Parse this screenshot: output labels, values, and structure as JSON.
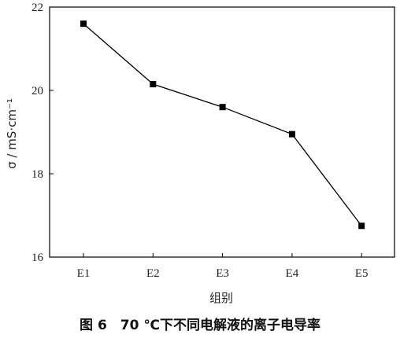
{
  "chart_data": {
    "type": "line",
    "caption": "图 6　70 ℃下不同电解液的离子电导率",
    "xlabel": "组别",
    "ylabel": "σ / mS·cm⁻¹",
    "categories": [
      "E1",
      "E2",
      "E3",
      "E4",
      "E5"
    ],
    "series": [
      {
        "values": [
          21.6,
          20.15,
          19.6,
          18.95,
          16.75
        ]
      }
    ],
    "ylim": [
      16,
      22
    ],
    "yticks": [
      "16",
      "18",
      "20",
      "22"
    ],
    "grid": false,
    "marker": "square",
    "line_color": "#000000"
  }
}
